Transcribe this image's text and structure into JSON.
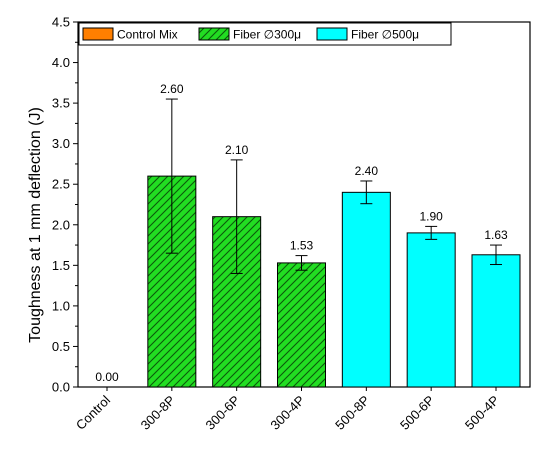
{
  "chart_data": {
    "type": "bar",
    "ylabel": "Toughness at 1 mm deflection (J)",
    "xlabel": "",
    "ylim": [
      0,
      4.5
    ],
    "yticks": [
      "0.0",
      "0.5",
      "1.0",
      "1.5",
      "2.0",
      "2.5",
      "3.0",
      "3.5",
      "4.0",
      "4.5"
    ],
    "categories": [
      "Control",
      "300-8P",
      "300-6P",
      "300-4P",
      "500-8P",
      "500-6P",
      "500-4P"
    ],
    "values": [
      0.0,
      2.6,
      2.1,
      1.53,
      2.4,
      1.9,
      1.63
    ],
    "value_labels": [
      "0.00",
      "2.60",
      "2.10",
      "1.53",
      "2.40",
      "1.90",
      "1.63"
    ],
    "errors": [
      0.0,
      0.95,
      0.7,
      0.09,
      0.14,
      0.08,
      0.12
    ],
    "groups": [
      "control",
      "fiber300",
      "fiber300",
      "fiber300",
      "fiber500",
      "fiber500",
      "fiber500"
    ],
    "legend": [
      {
        "key": "control",
        "label": "Control Mix",
        "color": "#ff7f00",
        "hatch": false
      },
      {
        "key": "fiber300",
        "label": "Fiber ∅300μ",
        "color": "#22dd22",
        "hatch": true
      },
      {
        "key": "fiber500",
        "label": "Fiber  ∅500μ",
        "color": "#00ffff",
        "hatch": false
      }
    ],
    "legend_position": "top",
    "grid": false
  }
}
